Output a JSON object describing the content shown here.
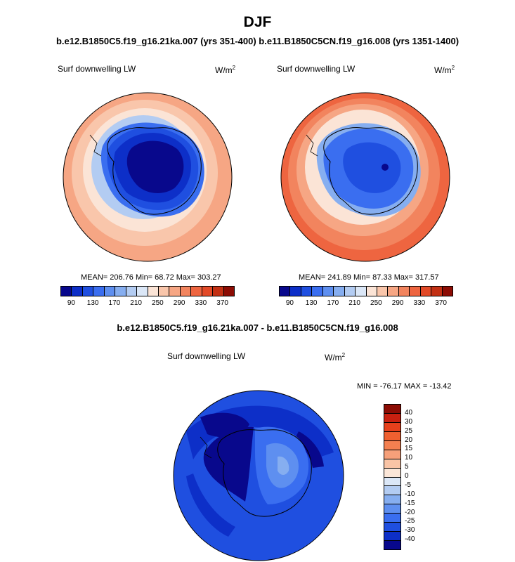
{
  "title": "DJF",
  "subtitle": "b.e12.B1850C5.f19_g16.21ka.007 (yrs 351-400) b.e11.B1850C5CN.f19_g16.008 (yrs 1351-1400)",
  "panels": [
    {
      "variable": "Surf downwelling LW",
      "units_base": "W/m",
      "units_exp": "2",
      "stats": "MEAN= 206.76  Min=  68.72  Max= 303.27"
    },
    {
      "variable": "Surf downwelling LW",
      "units_base": "W/m",
      "units_exp": "2",
      "stats": "MEAN= 241.89  Min=  87.33  Max= 317.57"
    }
  ],
  "colorbar": {
    "colors": [
      "#08088c",
      "#0d2fc8",
      "#1f4fe0",
      "#3a6ef0",
      "#5e8ff0",
      "#86aef0",
      "#b3ccf2",
      "#dbe7f7",
      "#fbe4d6",
      "#f9c6ab",
      "#f6a684",
      "#f2845e",
      "#ee6540",
      "#e24a28",
      "#c23014",
      "#8c0c04"
    ],
    "tick_labels": [
      "90",
      "130",
      "170",
      "210",
      "250",
      "290",
      "330",
      "370"
    ]
  },
  "diff": {
    "title": "b.e12.B1850C5.f19_g16.21ka.007 - b.e11.B1850C5CN.f19_g16.008",
    "variable": "Surf downwelling LW",
    "units_base": "W/m",
    "units_exp": "2",
    "minmax": "MIN = -76.17 MAX = -13.42",
    "colors": [
      "#8c0c04",
      "#c82010",
      "#e6401c",
      "#f06030",
      "#f48050",
      "#f6a07a",
      "#f9c4a6",
      "#fbe6d8",
      "#dbe7f7",
      "#b3ccf2",
      "#86aef0",
      "#5e8ff0",
      "#3a6ef0",
      "#1f4fe0",
      "#0d2fc8",
      "#08088c"
    ],
    "tick_labels": [
      "40",
      "30",
      "25",
      "20",
      "15",
      "10",
      "5",
      "0",
      "-5",
      "-10",
      "-15",
      "-20",
      "-25",
      "-30",
      "-40"
    ]
  }
}
